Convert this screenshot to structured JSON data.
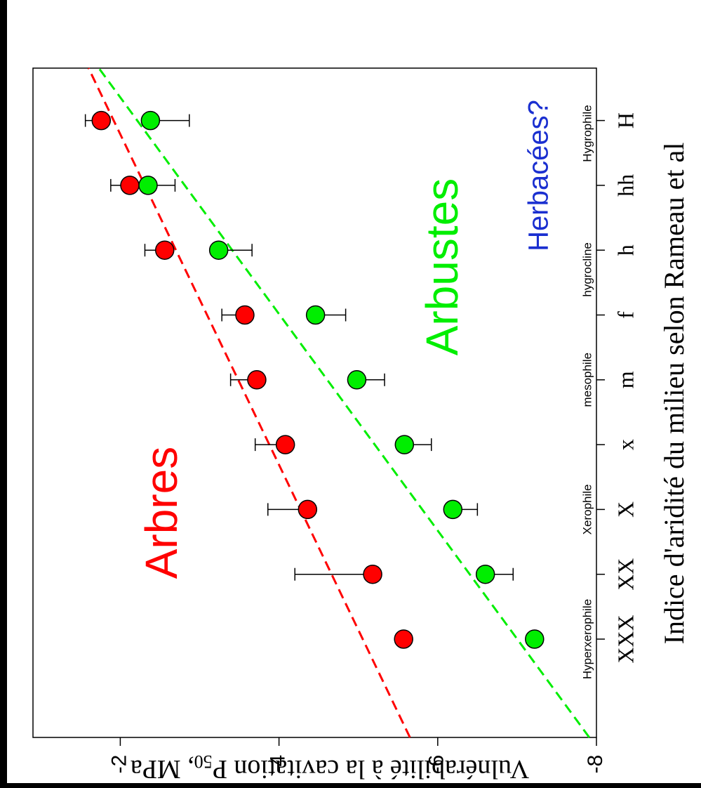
{
  "chart_data": {
    "type": "scatter",
    "xlabel": "Indice d'aridité du milieu selon Rameau et al",
    "ylabel": "Vulnérabilité à la cavitation P",
    "ylabel_sub": "50",
    "ylabel_end": ", MPa",
    "categories": [
      "XXX",
      "XX",
      "X",
      "x",
      "m",
      "f",
      "h",
      "hh",
      "H"
    ],
    "zones": [
      "Hyperxerophile",
      "Xerophile",
      "mesophile",
      "hygrocline",
      "Hygrophile"
    ],
    "ylim": [
      -8,
      -0.9
    ],
    "yticks": [
      -2,
      -4,
      -6,
      -8
    ],
    "series": [
      {
        "name": "Arbres",
        "color": "#ff0000",
        "error_side": "plus",
        "values": [
          -5.57,
          -5.18,
          -4.36,
          -4.08,
          -3.72,
          -3.57,
          -2.56,
          -2.12,
          -1.76
        ],
        "errors": [
          null,
          0.98,
          0.5,
          0.38,
          0.33,
          0.29,
          0.25,
          0.24,
          0.2
        ],
        "trend": [
          -5.65,
          -1.6
        ]
      },
      {
        "name": "Arbustes",
        "color": "#00ee00",
        "error_side": "minus",
        "values": [
          -7.22,
          -6.6,
          -6.19,
          -5.58,
          -4.98,
          -4.46,
          -3.24,
          -2.35,
          -2.38
        ],
        "errors": [
          null,
          0.35,
          0.31,
          0.34,
          0.35,
          0.38,
          0.42,
          0.34,
          0.49
        ],
        "trend": [
          -7.91,
          -1.73
        ]
      }
    ],
    "annotation": "Herbacées?",
    "annotation_color": "#1a2fd0"
  }
}
